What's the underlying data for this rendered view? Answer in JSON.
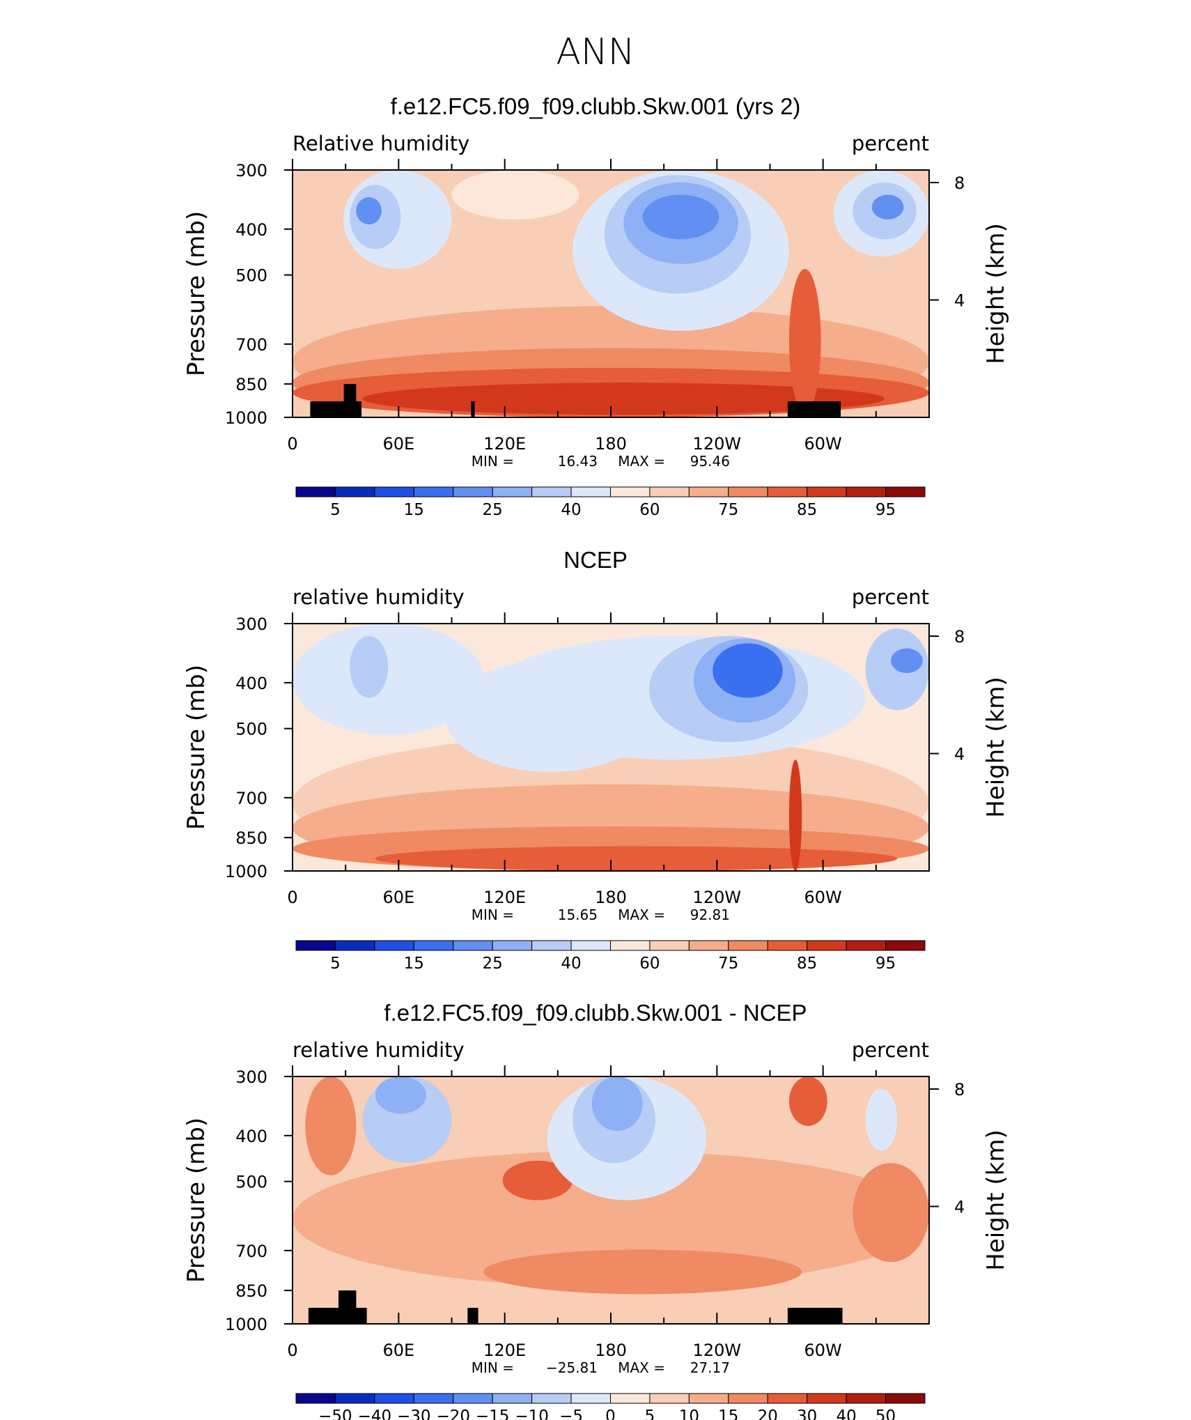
{
  "figure": {
    "main_title": "ANN"
  },
  "chart_data": [
    {
      "type": "heatmap",
      "panel_title": "f.e12.FC5.f09_f09.clubb.Skw.001 (yrs 2)",
      "left_label": "Relative humidity",
      "right_label": "percent",
      "xlabel": "",
      "ylabel": "Pressure (mb)",
      "ylabel_right": "Height (km)",
      "x_ticks": [
        "0",
        "60E",
        "120E",
        "180",
        "120W",
        "60W"
      ],
      "x_range": [
        0,
        360
      ],
      "y_ticks": [
        "300",
        "400",
        "500",
        "700",
        "850",
        "1000"
      ],
      "y_range": [
        300,
        1000
      ],
      "right_ticks": [
        "8",
        "4"
      ],
      "stats": {
        "min_label": "MIN =",
        "min": "16.43",
        "max_label": "MAX =",
        "max": "95.46"
      },
      "colorbar_labels": [
        "5",
        "15",
        "25",
        "40",
        "60",
        "75",
        "85",
        "95"
      ],
      "colorbar_colors": [
        "#08088f",
        "#0a2cbb",
        "#1f4ee6",
        "#3a6ff0",
        "#628ff2",
        "#8eb0f4",
        "#b7cdf6",
        "#dce8fa",
        "#fbe8da",
        "#f8ceb6",
        "#f5ad8c",
        "#ef8a62",
        "#e65d3a",
        "#d2391c",
        "#b21f10",
        "#8b0a0a"
      ]
    },
    {
      "type": "heatmap",
      "panel_title": "NCEP",
      "left_label": "relative humidity",
      "right_label": "percent",
      "xlabel": "",
      "ylabel": "Pressure (mb)",
      "ylabel_right": "Height (km)",
      "x_ticks": [
        "0",
        "60E",
        "120E",
        "180",
        "120W",
        "60W"
      ],
      "x_range": [
        0,
        360
      ],
      "y_ticks": [
        "300",
        "400",
        "500",
        "700",
        "850",
        "1000"
      ],
      "y_range": [
        300,
        1000
      ],
      "right_ticks": [
        "8",
        "4"
      ],
      "stats": {
        "min_label": "MIN =",
        "min": "15.65",
        "max_label": "MAX =",
        "max": "92.81"
      },
      "colorbar_labels": [
        "5",
        "15",
        "25",
        "40",
        "60",
        "75",
        "85",
        "95"
      ],
      "colorbar_colors": [
        "#08088f",
        "#0a2cbb",
        "#1f4ee6",
        "#3a6ff0",
        "#628ff2",
        "#8eb0f4",
        "#b7cdf6",
        "#dce8fa",
        "#fbe8da",
        "#f8ceb6",
        "#f5ad8c",
        "#ef8a62",
        "#e65d3a",
        "#d2391c",
        "#b21f10",
        "#8b0a0a"
      ]
    },
    {
      "type": "heatmap",
      "panel_title": "f.e12.FC5.f09_f09.clubb.Skw.001 - NCEP",
      "left_label": "relative humidity",
      "right_label": "percent",
      "xlabel": "",
      "ylabel": "Pressure (mb)",
      "ylabel_right": "Height (km)",
      "x_ticks": [
        "0",
        "60E",
        "120E",
        "180",
        "120W",
        "60W"
      ],
      "x_range": [
        0,
        360
      ],
      "y_ticks": [
        "300",
        "400",
        "500",
        "700",
        "850",
        "1000"
      ],
      "y_range": [
        300,
        1000
      ],
      "right_ticks": [
        "8",
        "4"
      ],
      "stats": {
        "min_label": "MIN =",
        "min": "−25.81",
        "max_label": "MAX =",
        "max": "27.17"
      },
      "colorbar_labels": [
        "−50",
        "−40",
        "−30",
        "−20",
        "−15",
        "−10",
        "−5",
        "0",
        "5",
        "10",
        "15",
        "20",
        "30",
        "40",
        "50"
      ],
      "colorbar_colors": [
        "#08088f",
        "#0a2cbb",
        "#1f4ee6",
        "#3a6ff0",
        "#628ff2",
        "#8eb0f4",
        "#b7cdf6",
        "#dce8fa",
        "#fbe8da",
        "#f8ceb6",
        "#f5ad8c",
        "#ef8a62",
        "#e65d3a",
        "#d2391c",
        "#b21f10",
        "#8b0a0a"
      ]
    }
  ]
}
